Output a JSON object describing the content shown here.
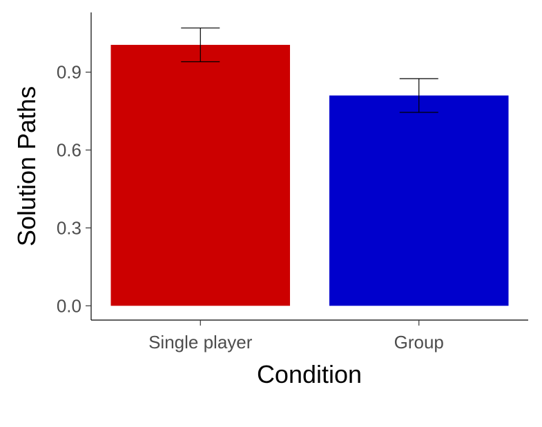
{
  "chart_data": {
    "type": "bar",
    "title": "",
    "xlabel": "Condition",
    "ylabel": "Solution Paths",
    "categories": [
      "Single player",
      "Group"
    ],
    "values": [
      1.005,
      0.81
    ],
    "error_bars": [
      {
        "low": 0.94,
        "high": 1.07
      },
      {
        "low": 0.745,
        "high": 0.875
      }
    ],
    "colors": [
      "#CC0000",
      "#0000CC"
    ],
    "ylim": [
      -0.055,
      1.13
    ],
    "yticks": [
      0.0,
      0.3,
      0.6,
      0.9
    ],
    "ytick_labels": [
      "0.0",
      "0.3",
      "0.6",
      "0.9"
    ],
    "grid": false,
    "legend": "none"
  }
}
